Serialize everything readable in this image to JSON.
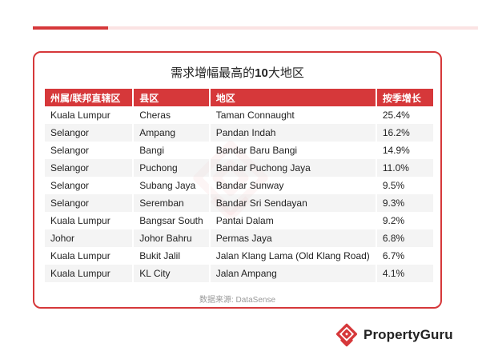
{
  "title": {
    "prefix": "需求增幅最高的",
    "number": "10",
    "suffix": "大地区"
  },
  "table": {
    "headers": [
      "州属/联邦直辖区",
      "县区",
      "地区",
      "按季增长"
    ],
    "rows": [
      [
        "Kuala Lumpur",
        "Cheras",
        "Taman Connaught",
        "25.4%"
      ],
      [
        "Selangor",
        "Ampang",
        "Pandan Indah",
        "16.2%"
      ],
      [
        "Selangor",
        "Bangi",
        "Bandar Baru Bangi",
        "14.9%"
      ],
      [
        "Selangor",
        "Puchong",
        "Bandar Puchong Jaya",
        "11.0%"
      ],
      [
        "Selangor",
        "Subang Jaya",
        "Bandar Sunway",
        "9.5%"
      ],
      [
        "Selangor",
        "Seremban",
        "Bandar Sri Sendayan",
        "9.3%"
      ],
      [
        "Kuala Lumpur",
        "Bangsar South",
        "Pantai Dalam",
        "9.2%"
      ],
      [
        "Johor",
        "Johor Bahru",
        "Permas Jaya",
        "6.8%"
      ],
      [
        "Kuala Lumpur",
        "Bukit Jalil",
        "Jalan Klang Lama (Old Klang Road)",
        "6.7%"
      ],
      [
        "Kuala Lumpur",
        "KL City",
        "Jalan Ampang",
        "4.1%"
      ]
    ]
  },
  "source": "数据来源: DataSense",
  "logo": {
    "text": "PropertyGuru",
    "icon": "propertyguru-logo-icon"
  },
  "colors": {
    "accent": "#d6383a",
    "accent_light": "#fbe3e3"
  }
}
